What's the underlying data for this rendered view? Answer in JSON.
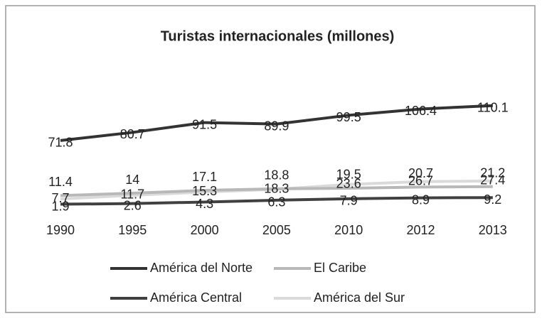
{
  "chart_data": {
    "type": "line",
    "title": "Turistas internacionales (millones)",
    "categories": [
      "1990",
      "1995",
      "2000",
      "2005",
      "2010",
      "2012",
      "2013"
    ],
    "series": [
      {
        "name": "América del Norte",
        "color": "#333333",
        "values": [
          71.8,
          80.7,
          91.5,
          89.9,
          99.5,
          106.4,
          110.1
        ]
      },
      {
        "name": "El Caribe",
        "color": "#b8b8b8",
        "values": [
          11.4,
          14,
          17.1,
          18.8,
          19.5,
          20.7,
          21.2
        ]
      },
      {
        "name": "América Central",
        "color": "#404040",
        "values": [
          1.9,
          2.6,
          4.3,
          6.3,
          7.9,
          8.9,
          9.2
        ]
      },
      {
        "name": "América del Sur",
        "color": "#dadada",
        "values": [
          7.7,
          11.7,
          15.3,
          18.3,
          23.6,
          26.7,
          27.4
        ]
      }
    ],
    "ylim": [
      0,
      120
    ]
  }
}
